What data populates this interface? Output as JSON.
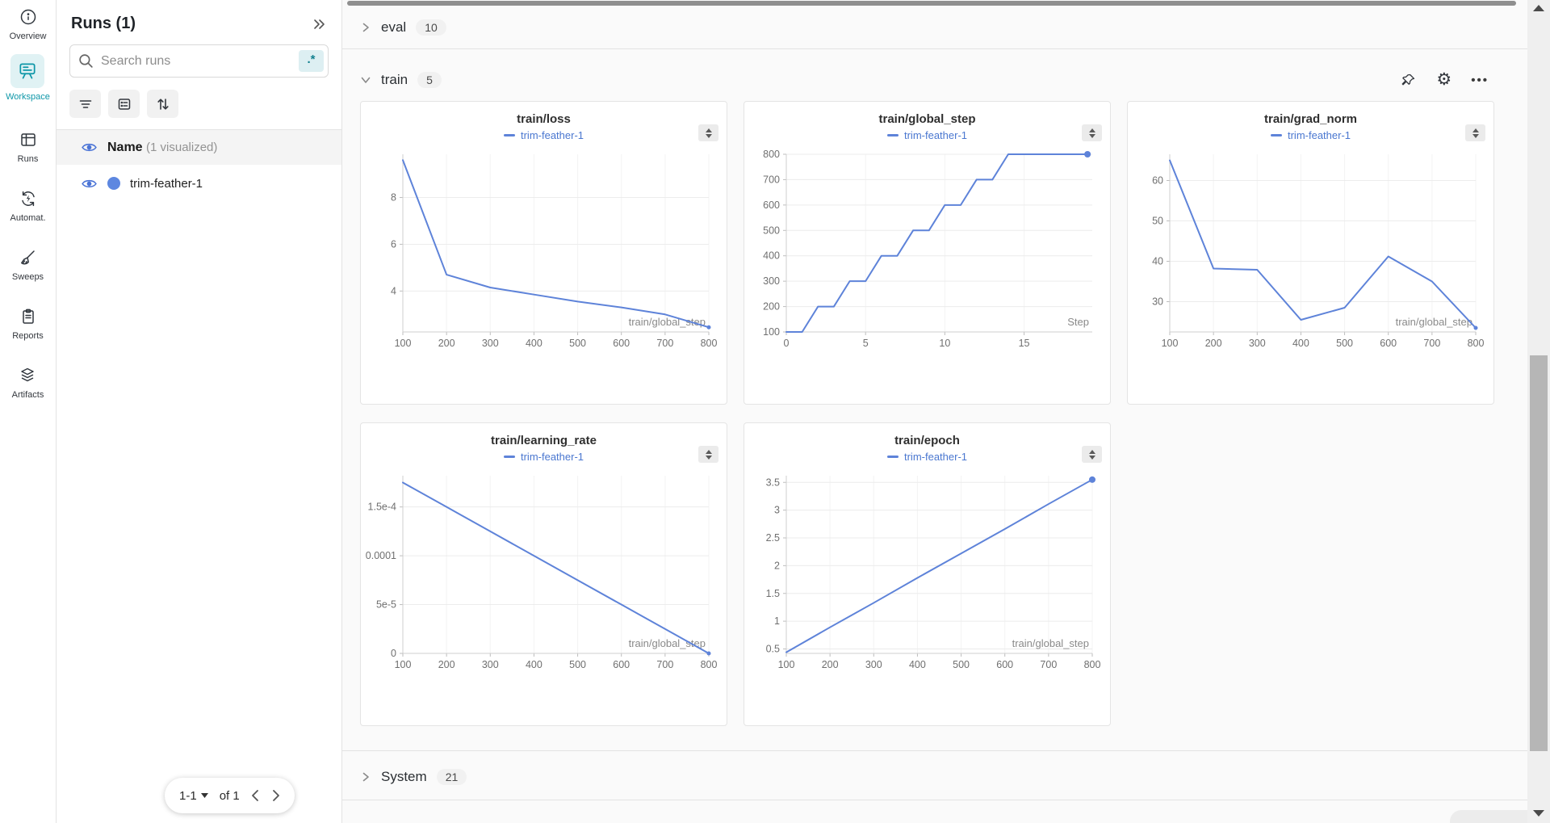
{
  "colors": {
    "accent_teal": "#0e97a8",
    "accent_teal_bg": "#e0f2f4",
    "run_blue": "#5e83d9",
    "legend_blue": "#4a77d0"
  },
  "nav": {
    "items": [
      {
        "label": "Overview",
        "active": false
      },
      {
        "label": "Workspace",
        "active": true
      },
      {
        "label": "Runs",
        "active": false
      },
      {
        "label": "Automat.",
        "active": false
      },
      {
        "label": "Sweeps",
        "active": false
      },
      {
        "label": "Reports",
        "active": false
      },
      {
        "label": "Artifacts",
        "active": false
      }
    ]
  },
  "runs_panel": {
    "title": "Runs (1)",
    "search_placeholder": "Search runs",
    "regex_button": ".*",
    "name_header": "Name",
    "visualized_note": "(1 visualized)",
    "run": {
      "name": "trim-feather-1"
    },
    "pagination": {
      "range": "1-1",
      "of_label": "of 1"
    }
  },
  "sections": {
    "eval": {
      "label": "eval",
      "count": "10"
    },
    "train": {
      "label": "train",
      "count": "5"
    },
    "system": {
      "label": "System",
      "count": "21"
    }
  },
  "chart_data": [
    {
      "type": "line",
      "title": "train/loss",
      "legend": "trim-feather-1",
      "color": "#5e83d9",
      "xlabel": "train/global_step",
      "x": [
        100,
        200,
        300,
        400,
        500,
        600,
        700,
        800
      ],
      "y": [
        9.6,
        4.7,
        4.15,
        3.85,
        3.55,
        3.3,
        3.0,
        2.45
      ],
      "xdomain": [
        100,
        800
      ],
      "ydomain": [
        2.25,
        9.85
      ],
      "xticks": {
        "values": [
          100,
          200,
          300,
          400,
          500,
          600,
          700,
          800
        ],
        "labels": [
          "100",
          "200",
          "300",
          "400",
          "500",
          "600",
          "700",
          "800"
        ]
      },
      "yticks": {
        "values": [
          4,
          6,
          8
        ],
        "labels": [
          "4",
          "6",
          "8"
        ]
      },
      "end_dot": 2.5
    },
    {
      "type": "line",
      "title": "train/global_step",
      "legend": "trim-feather-1",
      "color": "#5e83d9",
      "xlabel": "Step",
      "x": [
        0,
        1,
        2,
        3,
        4,
        5,
        6,
        7,
        8,
        9,
        10,
        11,
        12,
        13,
        14,
        19
      ],
      "y": [
        100,
        100,
        200,
        200,
        300,
        300,
        400,
        400,
        500,
        500,
        600,
        600,
        700,
        700,
        800,
        800
      ],
      "xdomain": [
        0,
        19.3
      ],
      "ydomain": [
        100,
        800
      ],
      "xticks": {
        "values": [
          0,
          5,
          10,
          15
        ],
        "labels": [
          "0",
          "5",
          "10",
          "15"
        ]
      },
      "yticks": {
        "values": [
          100,
          200,
          300,
          400,
          500,
          600,
          700,
          800
        ],
        "labels": [
          "100",
          "200",
          "300",
          "400",
          "500",
          "600",
          "700",
          "800"
        ]
      },
      "end_dot": 4
    },
    {
      "type": "line",
      "title": "train/grad_norm",
      "legend": "trim-feather-1",
      "color": "#5e83d9",
      "xlabel": "train/global_step",
      "x": [
        100,
        200,
        300,
        400,
        500,
        600,
        700,
        800
      ],
      "y": [
        65,
        38.2,
        37.9,
        25.5,
        28.5,
        41.2,
        35,
        23.5
      ],
      "xdomain": [
        100,
        800
      ],
      "ydomain": [
        22.5,
        66.5
      ],
      "xticks": {
        "values": [
          100,
          200,
          300,
          400,
          500,
          600,
          700,
          800
        ],
        "labels": [
          "100",
          "200",
          "300",
          "400",
          "500",
          "600",
          "700",
          "800"
        ]
      },
      "yticks": {
        "values": [
          30,
          40,
          50,
          60
        ],
        "labels": [
          "30",
          "40",
          "50",
          "60"
        ]
      },
      "end_dot": 2.5
    },
    {
      "type": "line",
      "title": "train/learning_rate",
      "legend": "trim-feather-1",
      "color": "#5e83d9",
      "xlabel": "train/global_step",
      "x": [
        100,
        200,
        300,
        400,
        500,
        600,
        700,
        800
      ],
      "y": [
        0.000175,
        0.00015,
        0.000125,
        0.0001,
        7.5e-05,
        5e-05,
        2.5e-05,
        0
      ],
      "xdomain": [
        100,
        800
      ],
      "ydomain": [
        0,
        0.000182
      ],
      "xticks": {
        "values": [
          100,
          200,
          300,
          400,
          500,
          600,
          700,
          800
        ],
        "labels": [
          "100",
          "200",
          "300",
          "400",
          "500",
          "600",
          "700",
          "800"
        ]
      },
      "yticks": {
        "values": [
          0,
          5e-05,
          0.0001,
          0.00015
        ],
        "labels": [
          "0",
          "5e-5",
          "0.0001",
          "1.5e-4"
        ]
      },
      "end_dot": 2.5
    },
    {
      "type": "line",
      "title": "train/epoch",
      "legend": "trim-feather-1",
      "color": "#5e83d9",
      "xlabel": "train/global_step",
      "x": [
        100,
        200,
        300,
        400,
        500,
        600,
        700,
        800
      ],
      "y": [
        0.44,
        0.89,
        1.33,
        1.78,
        2.22,
        2.66,
        3.11,
        3.55
      ],
      "xdomain": [
        100,
        800
      ],
      "ydomain": [
        0.42,
        3.62
      ],
      "xticks": {
        "values": [
          100,
          200,
          300,
          400,
          500,
          600,
          700,
          800
        ],
        "labels": [
          "100",
          "200",
          "300",
          "400",
          "500",
          "600",
          "700",
          "800"
        ]
      },
      "yticks": {
        "values": [
          0.5,
          1,
          1.5,
          2,
          2.5,
          3,
          3.5
        ],
        "labels": [
          "0.5",
          "1",
          "1.5",
          "2",
          "2.5",
          "3",
          "3.5"
        ]
      },
      "end_dot": 4
    }
  ]
}
